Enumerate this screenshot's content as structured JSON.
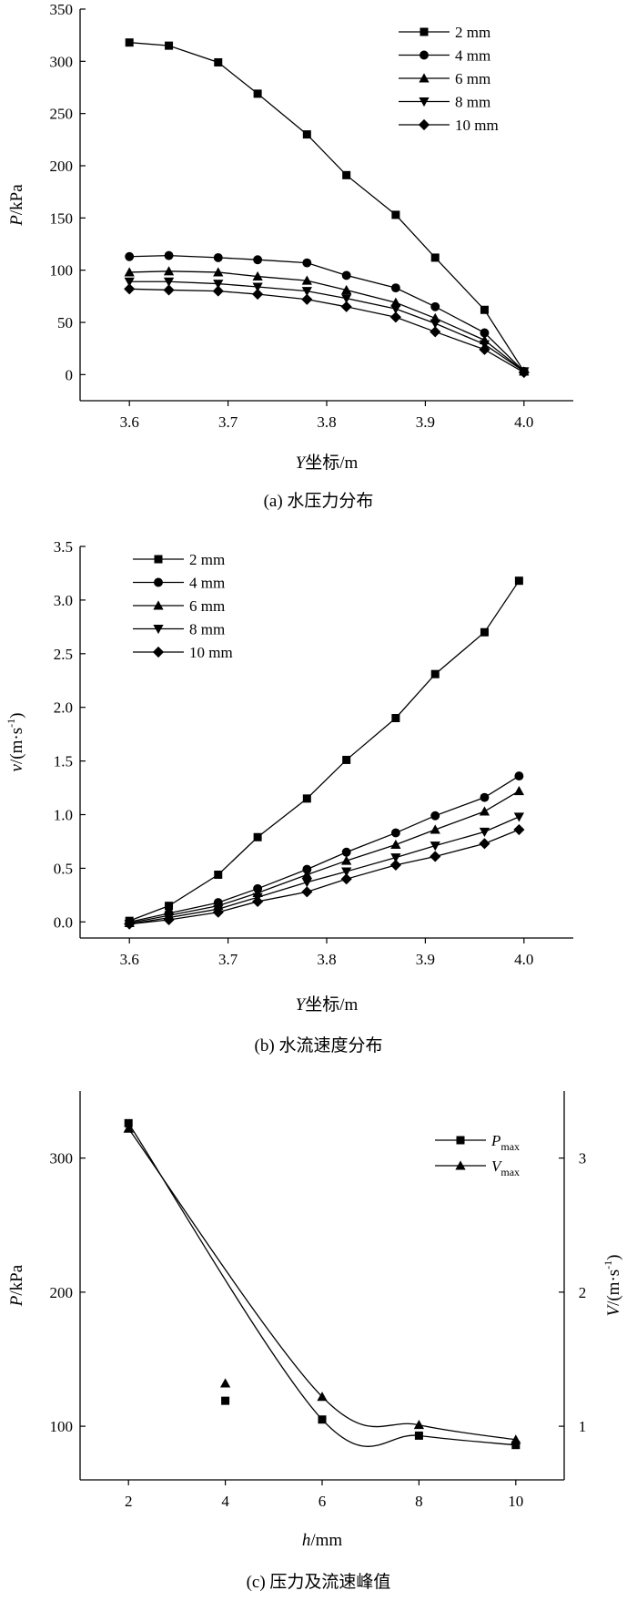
{
  "chart_data": [
    {
      "type": "line",
      "id": "a",
      "title": "",
      "caption": "(a) 水压力分布",
      "xlabel_italic": "Y",
      "xlabel_rest": "坐标/m",
      "ylabel_italic": "P",
      "ylabel_rest": "/kPa",
      "xlim": [
        3.55,
        4.05
      ],
      "ylim": [
        -25,
        350
      ],
      "xticks": [
        3.6,
        3.7,
        3.8,
        3.9,
        4.0
      ],
      "xtick_labels": [
        "3.6",
        "3.7",
        "3.8",
        "3.9",
        "4.0"
      ],
      "yticks": [
        0,
        50,
        100,
        150,
        200,
        250,
        300,
        350
      ],
      "ytick_labels": [
        "0",
        "50",
        "100",
        "150",
        "200",
        "250",
        "300",
        "350"
      ],
      "x": [
        3.6,
        3.64,
        3.69,
        3.73,
        3.78,
        3.82,
        3.87,
        3.91,
        3.96,
        4.0
      ],
      "legend_position": "top-right",
      "series": [
        {
          "name": "2 mm",
          "marker": "square",
          "values": [
            318,
            315,
            299,
            269,
            230,
            191,
            153,
            112,
            62,
            3
          ]
        },
        {
          "name": "4 mm",
          "marker": "circle",
          "values": [
            113,
            114,
            112,
            110,
            107,
            95,
            83,
            65,
            40,
            3
          ]
        },
        {
          "name": "6 mm",
          "marker": "triangle-up",
          "values": [
            98,
            99,
            98,
            94,
            90,
            81,
            69,
            54,
            33,
            3
          ]
        },
        {
          "name": "8 mm",
          "marker": "triangle-down",
          "values": [
            89,
            89,
            87,
            84,
            80,
            73,
            63,
            49,
            29,
            3
          ]
        },
        {
          "name": "10 mm",
          "marker": "diamond",
          "values": [
            82,
            81,
            80,
            77,
            72,
            65,
            55,
            41,
            24,
            2
          ]
        }
      ]
    },
    {
      "type": "line",
      "id": "b",
      "title": "",
      "caption": "(b) 水流速度分布",
      "xlabel_italic": "Y",
      "xlabel_rest": "坐标/m",
      "ylabel_italic": "v",
      "ylabel_rest": "/(m·s",
      "ylabel_sup": "-1",
      "ylabel_end": ")",
      "xlim": [
        3.55,
        4.05
      ],
      "ylim": [
        -0.15,
        3.5
      ],
      "xticks": [
        3.6,
        3.7,
        3.8,
        3.9,
        4.0
      ],
      "xtick_labels": [
        "3.6",
        "3.7",
        "3.8",
        "3.9",
        "4.0"
      ],
      "yticks": [
        0,
        0.5,
        1.0,
        1.5,
        2.0,
        2.5,
        3.0,
        3.5
      ],
      "ytick_labels": [
        "0.0",
        "0.5",
        "1.0",
        "1.5",
        "2.0",
        "2.5",
        "3.0",
        "3.5"
      ],
      "x": [
        3.6,
        3.64,
        3.69,
        3.73,
        3.78,
        3.82,
        3.87,
        3.91,
        3.96,
        3.995
      ],
      "legend_position": "top-left",
      "series": [
        {
          "name": "2 mm",
          "marker": "square",
          "values": [
            0.01,
            0.15,
            0.44,
            0.79,
            1.15,
            1.51,
            1.9,
            2.31,
            2.7,
            3.18
          ]
        },
        {
          "name": "4 mm",
          "marker": "circle",
          "values": [
            0.0,
            0.08,
            0.18,
            0.31,
            0.49,
            0.65,
            0.83,
            0.99,
            1.16,
            1.36
          ]
        },
        {
          "name": "6 mm",
          "marker": "triangle-up",
          "values": [
            -0.01,
            0.06,
            0.15,
            0.27,
            0.44,
            0.57,
            0.72,
            0.86,
            1.03,
            1.22
          ]
        },
        {
          "name": "8 mm",
          "marker": "triangle-down",
          "values": [
            -0.02,
            0.04,
            0.12,
            0.23,
            0.37,
            0.47,
            0.6,
            0.71,
            0.84,
            0.98
          ]
        },
        {
          "name": "10 mm",
          "marker": "diamond",
          "values": [
            -0.02,
            0.02,
            0.09,
            0.19,
            0.28,
            0.4,
            0.53,
            0.61,
            0.73,
            0.86
          ]
        }
      ]
    },
    {
      "type": "line",
      "id": "c",
      "title": "",
      "caption": "(c) 压力及流速峰值",
      "xlabel_italic": "h",
      "xlabel_rest": "/mm",
      "ylabel_italic": "P",
      "ylabel_rest": "/kPa",
      "y2label_italic": "V",
      "y2label_rest": "/(m·s",
      "y2label_sup": "-1",
      "y2label_end": ")",
      "xlim": [
        1,
        11
      ],
      "ylim": [
        60,
        350
      ],
      "y2lim": [
        0.6,
        3.5
      ],
      "xticks": [
        2,
        4,
        6,
        8,
        10
      ],
      "xtick_labels": [
        "2",
        "4",
        "6",
        "8",
        "10"
      ],
      "yticks": [
        100,
        200,
        300
      ],
      "ytick_labels": [
        "100",
        "200",
        "300"
      ],
      "y2ticks": [
        1,
        2,
        3
      ],
      "y2tick_labels": [
        "1",
        "2",
        "3"
      ],
      "x": [
        2,
        4,
        6,
        8,
        10
      ],
      "legend_position": "top-right",
      "series": [
        {
          "name": "P",
          "name_sub": "max",
          "marker": "square",
          "axis": "left",
          "values": [
            326,
            119,
            105,
            93,
            86
          ]
        },
        {
          "name": "V",
          "name_sub": "max",
          "marker": "triangle-up",
          "axis": "right",
          "values": [
            3.22,
            1.32,
            1.22,
            1.01,
            0.9
          ]
        }
      ]
    }
  ]
}
